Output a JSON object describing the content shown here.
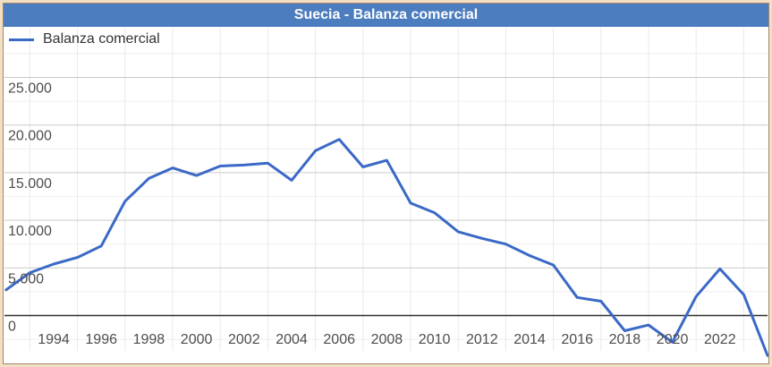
{
  "frame": {
    "background_color": "#F2DFC4",
    "border_color": "#A6856B",
    "inner_background": "#FFFFFF"
  },
  "title_bar": {
    "text": "Suecia - Balanza comercial",
    "background_color": "#4C7DBE",
    "text_color": "#FFFFFF"
  },
  "legend": {
    "label": "Balanza comercial",
    "swatch_color": "#3B69C6",
    "position": "top-left"
  },
  "chart_data": {
    "type": "line",
    "title": "Suecia - Balanza comercial",
    "xlabel": "",
    "ylabel": "",
    "xlim": [
      1992,
      2024
    ],
    "ylim": [
      -5000,
      30000
    ],
    "grid": "on",
    "legend_position": "top-left",
    "series": [
      {
        "name": "Balanza comercial",
        "color": "#3B69C6",
        "x": [
          1992,
          1993,
          1994,
          1995,
          1996,
          1997,
          1998,
          1999,
          2000,
          2001,
          2002,
          2003,
          2004,
          2005,
          2006,
          2007,
          2008,
          2009,
          2010,
          2011,
          2012,
          2013,
          2014,
          2015,
          2016,
          2017,
          2018,
          2019,
          2020,
          2021,
          2022,
          2023,
          2024
        ],
        "values": [
          2700,
          4500,
          5400,
          6100,
          7300,
          12000,
          14400,
          15500,
          14700,
          15700,
          15800,
          16000,
          14200,
          17300,
          18500,
          15600,
          16300,
          11800,
          10800,
          8800,
          8100,
          7500,
          6300,
          5300,
          1900,
          1500,
          -1600,
          -1000,
          -2800,
          2000,
          4900,
          2200,
          -4200
        ]
      }
    ],
    "y_axis": {
      "tick_step": 5000,
      "minor_tick_step": 2500,
      "ticks": [
        {
          "value": 25000,
          "label": "25.000"
        },
        {
          "value": 20000,
          "label": "20.000"
        },
        {
          "value": 15000,
          "label": "15.000"
        },
        {
          "value": 10000,
          "label": "10.000"
        },
        {
          "value": 5000,
          "label": "5.000"
        },
        {
          "value": 0,
          "label": "0"
        }
      ]
    },
    "x_axis": {
      "ticks": [
        {
          "value": 1994,
          "label": "1994"
        },
        {
          "value": 1996,
          "label": "1996"
        },
        {
          "value": 1998,
          "label": "1998"
        },
        {
          "value": 2000,
          "label": "2000"
        },
        {
          "value": 2002,
          "label": "2002"
        },
        {
          "value": 2004,
          "label": "2004"
        },
        {
          "value": 2006,
          "label": "2006"
        },
        {
          "value": 2008,
          "label": "2008"
        },
        {
          "value": 2010,
          "label": "2010"
        },
        {
          "value": 2012,
          "label": "2012"
        },
        {
          "value": 2014,
          "label": "2014"
        },
        {
          "value": 2016,
          "label": "2016"
        },
        {
          "value": 2018,
          "label": "2018"
        },
        {
          "value": 2020,
          "label": "2020"
        },
        {
          "value": 2022,
          "label": "2022"
        }
      ],
      "vertical_gridline_years": [
        1993,
        1995,
        1997,
        1999,
        2001,
        2003,
        2005,
        2007,
        2009,
        2011,
        2013,
        2015,
        2017,
        2019,
        2021,
        2023
      ]
    },
    "colors": {
      "major_gridline": "#C9C9C9",
      "minor_gridline": "#EFEFEF",
      "vertical_gridline": "#E9E9E9",
      "zero_line": "#2E2E2E",
      "tick_label": "#4D4D4D"
    }
  }
}
